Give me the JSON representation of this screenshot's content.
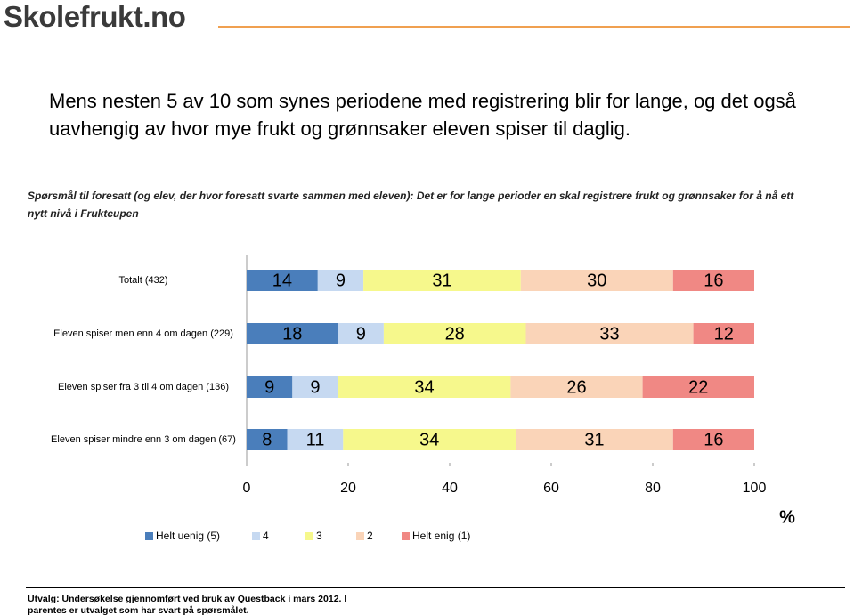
{
  "logo": "Skolefrukt.no",
  "heading": "Mens nesten 5 av 10 som synes periodene med registrering blir for lange, og det også uavhengig av hvor mye frukt og grønnsaker eleven spiser til daglig.",
  "question": "Spørsmål til foresatt (og elev, der hvor foresatt svarte sammen med eleven): Det er for lange perioder en skal registrere frukt og grønnsaker for å nå ett nytt nivå i Fruktcupen",
  "chart_data": {
    "type": "bar",
    "orientation": "horizontal",
    "stacked": true,
    "categories": [
      "Totalt (432)",
      "Eleven spiser men enn 4 om dagen (229)",
      "Eleven spiser fra 3 til 4 om dagen (136)",
      "Eleven spiser mindre enn 3 om dagen (67)"
    ],
    "series": [
      {
        "name": "Helt uenig (5)",
        "color": "#4a7ebb",
        "values": [
          14,
          18,
          9,
          8
        ]
      },
      {
        "name": "4",
        "color": "#c6d9f1",
        "values": [
          9,
          9,
          9,
          11
        ]
      },
      {
        "name": "3",
        "color": "#f6f88c",
        "values": [
          31,
          28,
          34,
          34
        ]
      },
      {
        "name": "2",
        "color": "#fad4b8",
        "values": [
          30,
          33,
          26,
          31
        ]
      },
      {
        "name": "Helt enig (1)",
        "color": "#f08884",
        "values": [
          16,
          12,
          22,
          16
        ]
      }
    ],
    "xlim": [
      0,
      100
    ],
    "xticks": [
      0,
      20,
      40,
      60,
      80,
      100
    ],
    "x_unit": "%"
  },
  "footnote": "Utvalg: Undersøkelse gjennomført ved bruk av Questback i mars 2012. I parentes er utvalget som har svart på spørsmålet."
}
